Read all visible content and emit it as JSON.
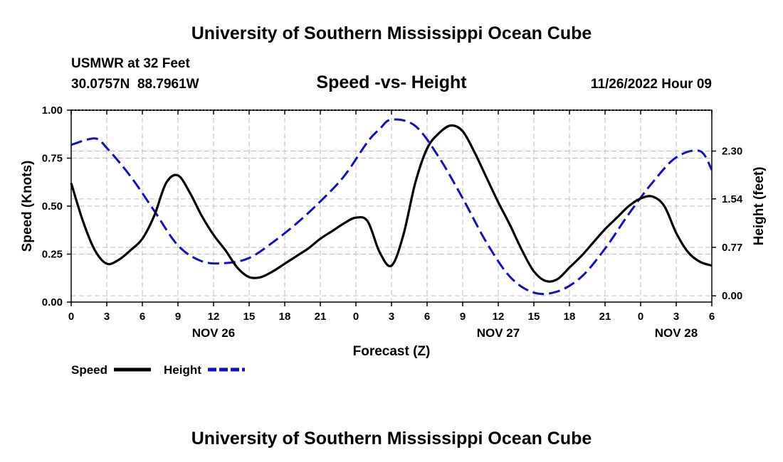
{
  "header": {
    "title": "University of Southern Mississippi Ocean Cube",
    "station": "USMWR at 32 Feet",
    "coords": "30.0757N  88.7961W",
    "datetime": "11/26/2022 Hour 09",
    "footer_title": "University of Southern Mississippi Ocean Cube"
  },
  "chart_data": {
    "type": "line",
    "title": "Speed -vs- Height",
    "xlabel": "Forecast (Z)",
    "ylabel": "Speed (Knots)",
    "y2label": "Height (feet)",
    "x_range_hours": [
      0,
      54
    ],
    "x_tick_step_hours": 3,
    "x_tick_labels": [
      "0",
      "3",
      "6",
      "9",
      "12",
      "15",
      "18",
      "21",
      "0",
      "3",
      "6",
      "9",
      "12",
      "15",
      "18",
      "21",
      "0",
      "3",
      "6"
    ],
    "date_labels": [
      {
        "hour": 12,
        "label": "NOV 26"
      },
      {
        "hour": 36,
        "label": "NOV 27"
      },
      {
        "hour": 51,
        "label": "NOV 28"
      }
    ],
    "ylim": [
      0,
      1
    ],
    "y_ticks": [
      0,
      0.25,
      0.5,
      0.75,
      1
    ],
    "y_tick_labels": [
      "0.00",
      "0.25",
      "0.50",
      "0.75",
      "1.00"
    ],
    "y2_ticks": [
      0,
      0.77,
      1.54,
      2.3
    ],
    "y2_tick_labels": [
      "0.00",
      "0.77",
      "1.54",
      "2.30"
    ],
    "y2lim": [
      -0.1,
      2.95
    ],
    "grid": true,
    "series": [
      {
        "name": "Speed",
        "axis": "left",
        "color": "#000000",
        "dash": "solid",
        "x": [
          0,
          1,
          2,
          3,
          4,
          5,
          6,
          7,
          8,
          9,
          10,
          11,
          12,
          13,
          14,
          15,
          16,
          17,
          18,
          19,
          20,
          21,
          22,
          23,
          24,
          25,
          26,
          27,
          28,
          29,
          30,
          31,
          32,
          33,
          34,
          35,
          36,
          37,
          38,
          39,
          40,
          41,
          42,
          43,
          44,
          45,
          46,
          47,
          48,
          49,
          50,
          51,
          52,
          53,
          54
        ],
        "values": [
          0.62,
          0.42,
          0.27,
          0.2,
          0.22,
          0.27,
          0.33,
          0.45,
          0.62,
          0.66,
          0.57,
          0.45,
          0.35,
          0.27,
          0.18,
          0.13,
          0.13,
          0.16,
          0.2,
          0.24,
          0.28,
          0.33,
          0.37,
          0.41,
          0.44,
          0.42,
          0.26,
          0.19,
          0.35,
          0.62,
          0.8,
          0.88,
          0.92,
          0.89,
          0.78,
          0.65,
          0.52,
          0.4,
          0.27,
          0.16,
          0.11,
          0.12,
          0.18,
          0.24,
          0.31,
          0.38,
          0.44,
          0.5,
          0.54,
          0.55,
          0.5,
          0.36,
          0.26,
          0.21,
          0.19
        ]
      },
      {
        "name": "Height",
        "axis": "right",
        "color": "#1010c8",
        "dash": "dashed",
        "x": [
          0,
          2,
          3,
          5,
          7,
          9,
          11,
          13,
          15,
          17,
          19,
          21,
          23,
          25,
          26,
          27,
          29,
          31,
          33,
          35,
          37,
          39,
          41,
          43,
          45,
          47,
          49,
          51,
          53,
          54
        ],
        "values": [
          2.4,
          2.5,
          2.35,
          1.9,
          1.35,
          0.8,
          0.55,
          0.52,
          0.6,
          0.85,
          1.15,
          1.5,
          1.9,
          2.45,
          2.65,
          2.8,
          2.7,
          2.2,
          1.55,
          0.85,
          0.3,
          0.05,
          0.07,
          0.3,
          0.75,
          1.3,
          1.8,
          2.2,
          2.3,
          2.0
        ]
      }
    ]
  },
  "legend": {
    "speed_label": "Speed",
    "height_label": "Height"
  }
}
